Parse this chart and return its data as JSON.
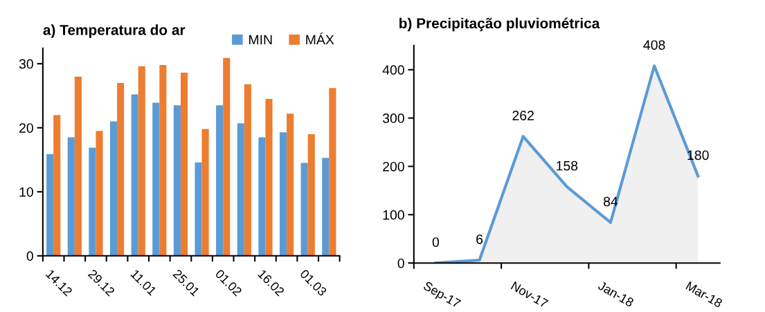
{
  "chart_data": [
    {
      "type": "bar",
      "title": "a) Temperatura do ar",
      "categories": [
        "14.12",
        null,
        "29.12",
        null,
        "11.01",
        null,
        "25.01",
        null,
        "01.02",
        null,
        "16.02",
        null,
        "01.03",
        null
      ],
      "series": [
        {
          "name": "MIN",
          "color": "#5b9bd5",
          "values": [
            15.9,
            18.5,
            16.9,
            21.0,
            25.2,
            23.9,
            23.5,
            14.6,
            23.5,
            20.7,
            18.5,
            19.3,
            14.5,
            15.3
          ]
        },
        {
          "name": "MÁX",
          "color": "#ed7d31",
          "values": [
            22.0,
            28.0,
            19.5,
            27.0,
            29.6,
            29.8,
            28.6,
            19.8,
            30.9,
            26.8,
            24.5,
            22.2,
            19.0,
            26.2
          ]
        }
      ],
      "ylim": [
        0,
        32.4
      ],
      "yticks": [
        0,
        10,
        20,
        30
      ],
      "grid": false,
      "legend": "top right"
    },
    {
      "type": "area",
      "title": "b) Precipitação pluviométrica",
      "categories": [
        "Sep-17",
        null,
        "Nov-17",
        null,
        "Jan-18",
        null,
        "Mar-18"
      ],
      "series": [
        {
          "color": "#5b9bd5",
          "values": [
            0,
            6,
            262,
            158,
            84,
            408,
            180
          ]
        }
      ],
      "ylim": [
        0,
        450
      ],
      "yticks": [
        0,
        100,
        200,
        300,
        400
      ],
      "grid": false,
      "legend": false,
      "data_labels": true
    }
  ]
}
